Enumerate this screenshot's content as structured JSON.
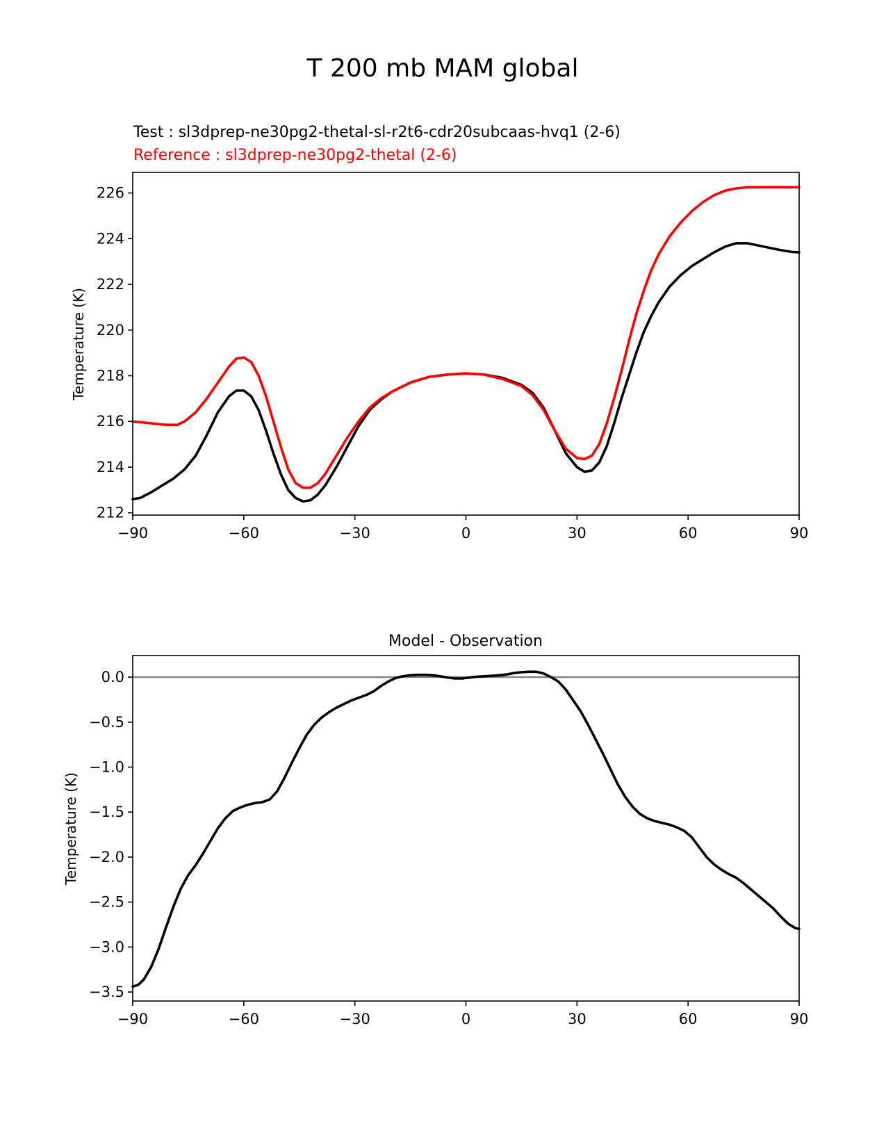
{
  "figure": {
    "title": "T 200 mb MAM global"
  },
  "colors": {
    "test": "#000000",
    "reference": "#ff0000",
    "zero_line": "#808080",
    "axes": "#000000"
  },
  "chart_data": [
    {
      "type": "line",
      "legend": {
        "test_label": "Test : sl3dprep-ne30pg2-thetal-sl-r2t6-cdr20subcaas-hvq1 (2-6)",
        "reference_label": "Reference : sl3dprep-ne30pg2-thetal (2-6)"
      },
      "xlabel": "",
      "ylabel": "Temperature (K)",
      "xlim": [
        -90,
        90
      ],
      "ylim": [
        211.9,
        226.9
      ],
      "xticks": [
        -90,
        -60,
        -30,
        0,
        30,
        60,
        90
      ],
      "xtick_labels": [
        "−90",
        "−60",
        "−30",
        "0",
        "30",
        "60",
        "90"
      ],
      "yticks": [
        212,
        214,
        216,
        218,
        220,
        222,
        224,
        226
      ],
      "ytick_labels": [
        "212",
        "214",
        "216",
        "218",
        "220",
        "222",
        "224",
        "226"
      ],
      "series": [
        {
          "name": "Test",
          "color": "#000000",
          "x": [
            -90,
            -88,
            -85,
            -82,
            -79,
            -76,
            -73,
            -70,
            -67,
            -64,
            -62,
            -60,
            -58,
            -56,
            -54,
            -52,
            -50,
            -48,
            -46,
            -44,
            -42,
            -40,
            -38,
            -35,
            -32,
            -29,
            -26,
            -23,
            -20,
            -15,
            -10,
            -5,
            0,
            5,
            10,
            15,
            18,
            21,
            24,
            27,
            30,
            32,
            34,
            36,
            38,
            40,
            42,
            44,
            46,
            48,
            50,
            52,
            55,
            58,
            61,
            64,
            67,
            70,
            73,
            76,
            79,
            82,
            85,
            88,
            90
          ],
          "y": [
            212.6,
            212.65,
            212.9,
            213.2,
            213.5,
            213.9,
            214.5,
            215.4,
            216.4,
            217.1,
            217.35,
            217.35,
            217.1,
            216.5,
            215.6,
            214.6,
            213.7,
            213.0,
            212.65,
            212.5,
            212.55,
            212.8,
            213.2,
            214.0,
            214.9,
            215.8,
            216.5,
            216.95,
            217.3,
            217.7,
            217.95,
            218.05,
            218.1,
            218.05,
            217.9,
            217.6,
            217.25,
            216.6,
            215.6,
            214.6,
            214.0,
            213.8,
            213.85,
            214.2,
            214.9,
            215.9,
            217.0,
            218.0,
            219.0,
            219.9,
            220.6,
            221.2,
            221.9,
            222.4,
            222.8,
            223.1,
            223.4,
            223.65,
            223.8,
            223.8,
            223.7,
            223.6,
            223.5,
            223.42,
            223.4
          ]
        },
        {
          "name": "Reference",
          "color": "#ff0000",
          "x": [
            -90,
            -87,
            -84,
            -81,
            -78,
            -76,
            -73,
            -70,
            -67,
            -64,
            -62,
            -60,
            -58,
            -56,
            -54,
            -52,
            -50,
            -48,
            -46,
            -44,
            -42,
            -40,
            -38,
            -35,
            -32,
            -29,
            -26,
            -23,
            -20,
            -15,
            -10,
            -5,
            0,
            5,
            10,
            15,
            18,
            21,
            24,
            27,
            30,
            32,
            34,
            36,
            38,
            40,
            42,
            44,
            46,
            48,
            50,
            52,
            55,
            58,
            61,
            64,
            67,
            70,
            73,
            76,
            79,
            82,
            85,
            88,
            90
          ],
          "y": [
            216.0,
            215.95,
            215.9,
            215.85,
            215.85,
            216.0,
            216.4,
            217.0,
            217.7,
            218.4,
            218.75,
            218.8,
            218.6,
            218.0,
            217.1,
            216.0,
            214.9,
            213.9,
            213.3,
            213.1,
            213.1,
            213.3,
            213.7,
            214.5,
            215.3,
            216.0,
            216.6,
            217.0,
            217.3,
            217.7,
            217.95,
            218.05,
            218.1,
            218.05,
            217.85,
            217.55,
            217.15,
            216.5,
            215.6,
            214.8,
            214.4,
            214.35,
            214.5,
            215.0,
            215.9,
            217.0,
            218.2,
            219.5,
            220.7,
            221.7,
            222.6,
            223.3,
            224.1,
            224.7,
            225.2,
            225.6,
            225.9,
            226.1,
            226.2,
            226.25,
            226.25,
            226.25,
            226.25,
            226.25,
            226.25
          ]
        }
      ]
    },
    {
      "type": "line",
      "title": "Model - Observation",
      "xlabel": "",
      "ylabel": "Temperature (K)",
      "xlim": [
        -90,
        90
      ],
      "ylim": [
        -3.6,
        0.24
      ],
      "xticks": [
        -90,
        -60,
        -30,
        0,
        30,
        60,
        90
      ],
      "xtick_labels": [
        "−90",
        "−60",
        "−30",
        "0",
        "30",
        "60",
        "90"
      ],
      "yticks": [
        0.0,
        -0.5,
        -1.0,
        -1.5,
        -2.0,
        -2.5,
        -3.0,
        -3.5
      ],
      "ytick_labels": [
        "0.0",
        "−0.5",
        "−1.0",
        "−1.5",
        "−2.0",
        "−2.5",
        "−3.0",
        "−3.5"
      ],
      "zero_line": 0,
      "series": [
        {
          "name": "Model - Observation",
          "color": "#000000",
          "x": [
            -90,
            -88.5,
            -87,
            -85,
            -83,
            -81,
            -79,
            -77,
            -75,
            -73,
            -71,
            -69,
            -67,
            -65,
            -63,
            -61,
            -59,
            -57,
            -55,
            -53,
            -51,
            -49,
            -47,
            -45,
            -43,
            -41,
            -39,
            -37,
            -35,
            -33,
            -31,
            -29,
            -27,
            -25,
            -23,
            -21,
            -19,
            -17,
            -15,
            -13,
            -11,
            -9,
            -7,
            -5,
            -3,
            -1,
            1,
            3,
            5,
            7,
            9,
            11,
            13,
            15,
            17,
            19,
            21,
            23,
            25,
            27,
            29,
            31,
            33,
            35,
            37,
            39,
            41,
            43,
            45,
            47,
            49,
            51,
            53,
            55,
            57,
            59,
            61,
            63,
            65,
            67,
            69,
            71,
            73,
            75,
            77,
            79,
            81,
            83,
            85,
            87,
            89,
            90
          ],
          "y": [
            -3.44,
            -3.42,
            -3.36,
            -3.22,
            -3.02,
            -2.78,
            -2.55,
            -2.35,
            -2.2,
            -2.09,
            -1.96,
            -1.82,
            -1.68,
            -1.57,
            -1.49,
            -1.45,
            -1.42,
            -1.4,
            -1.39,
            -1.36,
            -1.27,
            -1.12,
            -0.95,
            -0.79,
            -0.64,
            -0.53,
            -0.45,
            -0.39,
            -0.34,
            -0.3,
            -0.26,
            -0.23,
            -0.2,
            -0.16,
            -0.1,
            -0.05,
            -0.01,
            0.01,
            0.02,
            0.025,
            0.025,
            0.02,
            0.01,
            -0.005,
            -0.015,
            -0.015,
            -0.005,
            0.005,
            0.01,
            0.015,
            0.02,
            0.03,
            0.045,
            0.055,
            0.06,
            0.06,
            0.04,
            0.0,
            -0.05,
            -0.14,
            -0.26,
            -0.38,
            -0.53,
            -0.69,
            -0.85,
            -1.02,
            -1.19,
            -1.33,
            -1.44,
            -1.52,
            -1.57,
            -1.6,
            -1.62,
            -1.64,
            -1.67,
            -1.71,
            -1.78,
            -1.89,
            -2.0,
            -2.08,
            -2.14,
            -2.19,
            -2.23,
            -2.29,
            -2.36,
            -2.43,
            -2.5,
            -2.57,
            -2.66,
            -2.74,
            -2.79,
            -2.8
          ]
        }
      ]
    }
  ]
}
